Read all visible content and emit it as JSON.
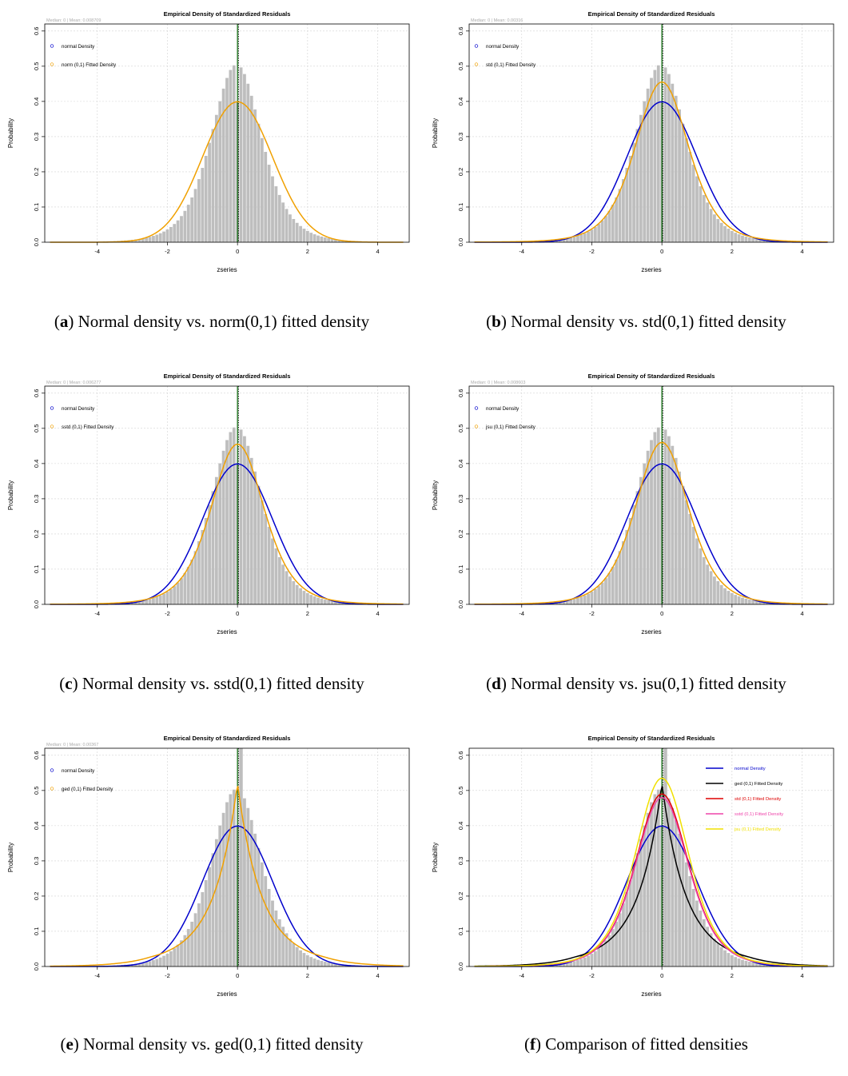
{
  "common": {
    "title": "Empirical Density of Standardized Residuals",
    "xlabel": "zseries",
    "ylabel": "Probability",
    "x_ticks": [
      -4,
      -2,
      0,
      2,
      4
    ],
    "y_ticks": [
      "0.0",
      "0.1",
      "0.2",
      "0.3",
      "0.4",
      "0.5",
      "0.6"
    ],
    "xlim": [
      -5.5,
      4.9
    ],
    "ylim": [
      0,
      0.62
    ]
  },
  "colors": {
    "bars": "#bebebe",
    "normal": "#0000cc",
    "fitted": "#f0a000",
    "ged": "#000000",
    "std": "#dd0000",
    "sstd": "#ee44aa",
    "jsu": "#f0e000",
    "median_line": "#006400",
    "grid": "#d3d3d3"
  },
  "panels": [
    {
      "id": "a",
      "letter": "a",
      "caption": ") Normal density vs. norm(0,1) fitted density",
      "stat_text": "Median: 0 | Mean: 0.008709",
      "legend": [
        "normal Density",
        "norm (0,1) Fitted Density"
      ],
      "chart_data": {
        "type": "bar",
        "title": "Empirical Density of Standardized Residuals",
        "xlabel": "zseries",
        "ylabel": "Probability",
        "xlim": [
          -5.5,
          4.9
        ],
        "ylim": [
          0,
          0.62
        ],
        "histogram": {
          "bin_width": 0.1,
          "center": 0,
          "sd": 0.9,
          "peak": 0.505,
          "dip_at": 0.0,
          "dip_value": 0.4
        },
        "series": [
          {
            "name": "norm (0,1) Fitted Density",
            "dist": "norm",
            "color": "#f0a000"
          }
        ]
      }
    },
    {
      "id": "b",
      "letter": "b",
      "caption": ") Normal density vs. std(0,1) fitted density",
      "stat_text": "Median: 0 | Mean: 0.00316",
      "legend": [
        "normal Density",
        "std (0,1) Fitted Density"
      ],
      "chart_data": {
        "type": "bar",
        "title": "Empirical Density of Standardized Residuals",
        "xlabel": "zseries",
        "ylabel": "Probability",
        "xlim": [
          -5.5,
          4.9
        ],
        "ylim": [
          0,
          0.62
        ],
        "histogram": {
          "bin_width": 0.1,
          "center": 0,
          "sd": 0.9,
          "peak": 0.505,
          "dip_at": 0.0,
          "dip_value": 0.4
        },
        "series": [
          {
            "name": "normal Density",
            "dist": "normal",
            "color": "#0000cc"
          },
          {
            "name": "std (0,1) Fitted Density",
            "dist": "std",
            "color": "#f0a000",
            "peak": 0.455
          }
        ]
      }
    },
    {
      "id": "c",
      "letter": "c",
      "caption": ") Normal density vs. sstd(0,1) fitted density",
      "stat_text": "Median: 0 | Mean: 0.006277",
      "legend": [
        "normal Density",
        "sstd (0,1) Fitted Density"
      ],
      "chart_data": {
        "type": "bar",
        "title": "Empirical Density of Standardized Residuals",
        "xlabel": "zseries",
        "ylabel": "Probability",
        "xlim": [
          -5.5,
          4.9
        ],
        "ylim": [
          0,
          0.62
        ],
        "histogram": {
          "bin_width": 0.1,
          "center": 0,
          "sd": 0.9,
          "peak": 0.505,
          "dip_at": 0.0,
          "dip_value": 0.4
        },
        "series": [
          {
            "name": "normal Density",
            "dist": "normal",
            "color": "#0000cc"
          },
          {
            "name": "sstd (0,1) Fitted Density",
            "dist": "std",
            "color": "#f0a000",
            "peak": 0.455
          }
        ]
      }
    },
    {
      "id": "d",
      "letter": "d",
      "caption": ") Normal density vs. jsu(0,1) fitted density",
      "stat_text": "Median: 0 | Mean: 0.008603",
      "legend": [
        "normal Density",
        "jsu (0,1) Fitted Density"
      ],
      "chart_data": {
        "type": "bar",
        "title": "Empirical Density of Standardized Residuals",
        "xlabel": "zseries",
        "ylabel": "Probability",
        "xlim": [
          -5.5,
          4.9
        ],
        "ylim": [
          0,
          0.62
        ],
        "histogram": {
          "bin_width": 0.1,
          "center": 0,
          "sd": 0.9,
          "peak": 0.505,
          "dip_at": 0.0,
          "dip_value": 0.4
        },
        "series": [
          {
            "name": "normal Density",
            "dist": "normal",
            "color": "#0000cc"
          },
          {
            "name": "jsu (0,1) Fitted Density",
            "dist": "std",
            "color": "#f0a000",
            "peak": 0.46
          }
        ]
      }
    },
    {
      "id": "e",
      "letter": "e",
      "caption": ") Normal density vs. ged(0,1) fitted density",
      "stat_text": "Median: 0 | Mean: 0.00367",
      "legend": [
        "normal Density",
        "ged (0,1) Fitted Density"
      ],
      "chart_data": {
        "type": "bar",
        "title": "Empirical Density of Standardized Residuals",
        "xlabel": "zseries",
        "ylabel": "Probability",
        "xlim": [
          -5.5,
          4.9
        ],
        "ylim": [
          0,
          0.62
        ],
        "histogram": {
          "bin_width": 0.1,
          "center": 0,
          "sd": 0.9,
          "peak": 0.505,
          "dip_at": 0.0,
          "dip_value": 0.4,
          "extra_bar_value": 0.62
        },
        "series": [
          {
            "name": "normal Density",
            "dist": "normal",
            "color": "#0000cc"
          },
          {
            "name": "ged (0,1) Fitted Density",
            "dist": "ged",
            "color": "#f0a000",
            "peak": 0.52
          }
        ]
      }
    },
    {
      "id": "f",
      "letter": "f",
      "caption": ") Comparison of fitted densities",
      "stat_text": "",
      "legend": [
        "normal Density",
        "ged (0,1) Fitted Density",
        "std (0,1) Fitted Density",
        "sstd (0,1) Fitted Density",
        "jsu (0,1) Fitted Density"
      ],
      "chart_data": {
        "type": "bar",
        "title": "Empirical Density of Standardized Residuals",
        "xlabel": "zseries",
        "ylabel": "Probability",
        "xlim": [
          -5.5,
          4.9
        ],
        "ylim": [
          0,
          0.62
        ],
        "histogram": {
          "bin_width": 0.1,
          "center": 0,
          "sd": 0.9,
          "peak": 0.505,
          "dip_at": 0.0,
          "dip_value": 0.4,
          "extra_bar_value": 0.62
        },
        "series": [
          {
            "name": "normal Density",
            "dist": "normal",
            "color": "#0000cc"
          },
          {
            "name": "ged (0,1) Fitted Density",
            "dist": "ged",
            "color": "#000000",
            "peak": 0.52
          },
          {
            "name": "std (0,1) Fitted Density",
            "dist": "std",
            "color": "#dd0000",
            "peak": 0.49
          },
          {
            "name": "sstd (0,1) Fitted Density",
            "dist": "std",
            "color": "#ee44aa",
            "peak": 0.48
          },
          {
            "name": "jsu (0,1) Fitted Density",
            "dist": "jsu",
            "color": "#f0e000",
            "peak": 0.535
          }
        ]
      }
    }
  ]
}
